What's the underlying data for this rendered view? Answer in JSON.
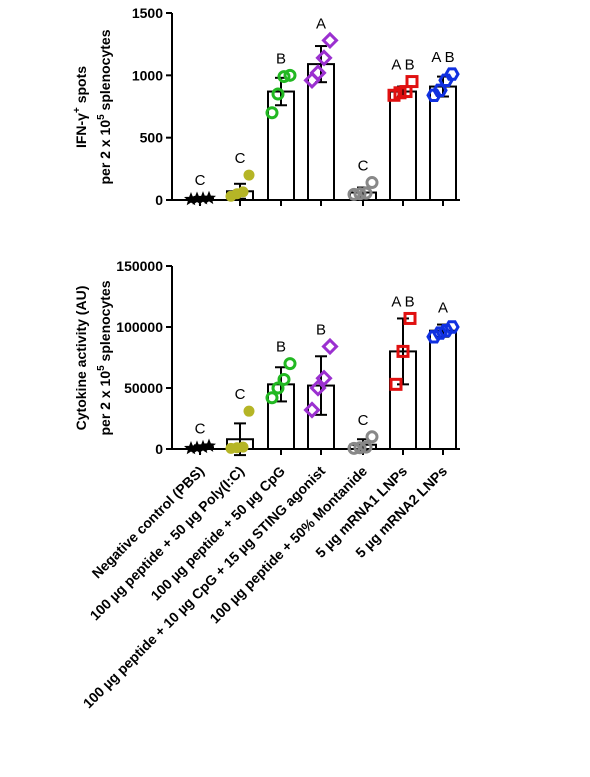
{
  "chart_data": [
    {
      "type": "bar",
      "ylabel_line1": "IFN-γ",
      "ylabel_sup": "+",
      "ylabel_line1_rest": " spots",
      "ylabel_line2": "per 2 x 10",
      "ylabel_line2_sup": "5",
      "ylabel_line2_rest": " splenocytes",
      "ylim": [
        0,
        1500
      ],
      "yticks": [
        0,
        500,
        1000,
        1500
      ],
      "ytick_labels": [
        "0",
        "500",
        "1000",
        "1500"
      ],
      "bars": [
        {
          "mean": 10,
          "error": 15,
          "letter": "C",
          "points": [
            5,
            10,
            12,
            15
          ]
        },
        {
          "mean": 70,
          "error": 60,
          "letter": "C",
          "points": [
            30,
            50,
            65,
            200
          ]
        },
        {
          "mean": 870,
          "error": 110,
          "letter": "B",
          "points": [
            700,
            850,
            990,
            1000
          ]
        },
        {
          "mean": 1090,
          "error": 145,
          "letter": "A",
          "points": [
            960,
            1020,
            1140,
            1280
          ]
        },
        {
          "mean": 60,
          "error": 40,
          "letter": "C",
          "points": [
            45,
            50,
            55,
            140
          ]
        },
        {
          "mean": 870,
          "error": 40,
          "letter": "A B",
          "points": [
            840,
            860,
            870,
            950
          ]
        },
        {
          "mean": 910,
          "error": 80,
          "letter": "A B",
          "points": [
            840,
            880,
            960,
            1010
          ]
        }
      ]
    },
    {
      "type": "bar",
      "ylabel_line1": "Cytokine activity (AU)",
      "ylabel_line2": "per 2 x 10",
      "ylabel_line2_sup": "5",
      "ylabel_line2_rest": " splenocytes",
      "ylim": [
        0,
        150000
      ],
      "yticks": [
        0,
        50000,
        100000,
        150000
      ],
      "ytick_labels": [
        "0",
        "50000",
        "100000",
        "150000"
      ],
      "bars": [
        {
          "mean": 1500,
          "error": 1500,
          "letter": "C",
          "points": [
            500,
            1000,
            1500,
            2500
          ]
        },
        {
          "mean": 8000,
          "error": 13000,
          "letter": "C",
          "points": [
            500,
            1000,
            1500,
            31000
          ]
        },
        {
          "mean": 53000,
          "error": 14000,
          "letter": "B",
          "points": [
            42000,
            50000,
            57000,
            70000
          ]
        },
        {
          "mean": 52000,
          "error": 24000,
          "letter": "B",
          "points": [
            32000,
            50000,
            58000,
            84000
          ]
        },
        {
          "mean": 3500,
          "error": 4500,
          "letter": "C",
          "points": [
            500,
            1000,
            1500,
            10000
          ]
        },
        {
          "mean": 80000,
          "error": 27000,
          "letter": "A B",
          "points": [
            53000,
            80000,
            107000
          ]
        },
        {
          "mean": 97000,
          "error": 5000,
          "letter": "A",
          "points": [
            92000,
            95000,
            97000,
            100000
          ]
        }
      ]
    }
  ],
  "groups": [
    {
      "label": "Negative control (PBS)",
      "color": "#000000",
      "marker": "star"
    },
    {
      "label": "100 µg peptide + 50 µg Poly(I:C)",
      "color": "#b5b526",
      "marker": "filled-circle"
    },
    {
      "label": "100 µg peptide + 50 µg CpG",
      "color": "#22b822",
      "marker": "open-circle"
    },
    {
      "label": "100 µg peptide + 10 µg CpG + 15 µg STING agonist",
      "color": "#9b30d0",
      "marker": "open-diamond"
    },
    {
      "label": "100 µg peptide + 50% Montanide",
      "color": "#888888",
      "marker": "open-circle"
    },
    {
      "label": "5 µg mRNA1 LNPs",
      "color": "#e01010",
      "marker": "open-square"
    },
    {
      "label": "5 µg mRNA2 LNPs",
      "color": "#1030e0",
      "marker": "open-hexagon"
    }
  ]
}
